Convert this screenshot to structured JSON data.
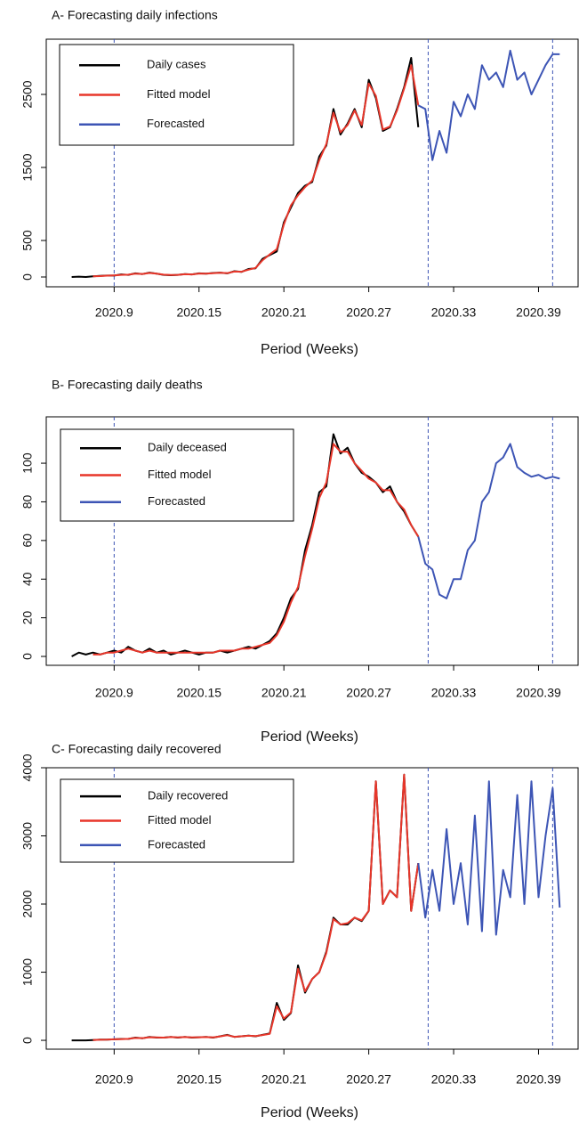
{
  "chart_data": [
    {
      "type": "line",
      "title": "A- Forecasting daily infections",
      "xlabel": "Period (Weeks)",
      "x": [
        6,
        6.5,
        7,
        7.5,
        8,
        8.5,
        9,
        9.5,
        10,
        10.5,
        11,
        11.5,
        12,
        12.5,
        13,
        13.5,
        14,
        14.5,
        15,
        15.5,
        16,
        16.5,
        17,
        17.5,
        18,
        18.5,
        19,
        19.5,
        20,
        20.5,
        21,
        21.5,
        22,
        22.5,
        23,
        23.5,
        24,
        24.5,
        25,
        25.5,
        26,
        26.5,
        27,
        27.5,
        28,
        28.5,
        29,
        29.5,
        30,
        30.5,
        31,
        31.5,
        32,
        32.5,
        33,
        33.5,
        34,
        34.5,
        35,
        35.5,
        36,
        36.5,
        37,
        37.5,
        38,
        38.5,
        39,
        39.5,
        40,
        40.5
      ],
      "series": [
        {
          "name": "Daily cases",
          "color": "#000000",
          "values": [
            0,
            5,
            0,
            10,
            15,
            20,
            20,
            35,
            30,
            50,
            40,
            60,
            45,
            30,
            25,
            30,
            40,
            35,
            50,
            45,
            55,
            60,
            50,
            80,
            70,
            110,
            120,
            250,
            300,
            350,
            750,
            950,
            1150,
            1250,
            1300,
            1650,
            1800,
            2300,
            1950,
            2100,
            2300,
            2050,
            2700,
            2450,
            2000,
            2050,
            2300,
            2600,
            3000,
            2050,
            null,
            null,
            null,
            null,
            null,
            null,
            null,
            null,
            null,
            null,
            null,
            null,
            null,
            null,
            null,
            null,
            null,
            null,
            null,
            null
          ]
        },
        {
          "name": "Fitted model",
          "color": "#e8362a",
          "values": [
            null,
            null,
            null,
            10,
            12,
            18,
            22,
            30,
            32,
            45,
            42,
            55,
            45,
            32,
            28,
            30,
            38,
            36,
            48,
            46,
            52,
            58,
            52,
            75,
            72,
            100,
            125,
            230,
            310,
            380,
            720,
            980,
            1120,
            1230,
            1320,
            1600,
            1820,
            2250,
            1980,
            2080,
            2280,
            2080,
            2650,
            2480,
            2020,
            2060,
            2280,
            2580,
            2900,
            2350,
            null,
            null,
            null,
            null,
            null,
            null,
            null,
            null,
            null,
            null,
            null,
            null,
            null,
            null,
            null,
            null,
            null,
            null,
            null,
            null
          ]
        },
        {
          "name": "Forecasted",
          "color": "#3d55b5",
          "values": [
            null,
            null,
            null,
            null,
            null,
            null,
            null,
            null,
            null,
            null,
            null,
            null,
            null,
            null,
            null,
            null,
            null,
            null,
            null,
            null,
            null,
            null,
            null,
            null,
            null,
            null,
            null,
            null,
            null,
            null,
            null,
            null,
            null,
            null,
            null,
            null,
            null,
            null,
            null,
            null,
            null,
            null,
            null,
            null,
            null,
            null,
            null,
            null,
            null,
            2350,
            2300,
            1600,
            2000,
            1700,
            2400,
            2200,
            2500,
            2300,
            2900,
            2700,
            2800,
            2600,
            3100,
            2700,
            2800,
            2500,
            2700,
            2900,
            3050,
            3050
          ]
        }
      ],
      "xlim": [
        4.2,
        41.8
      ],
      "ylim": [
        -134,
        3256
      ],
      "xticks": [
        {
          "value": 9,
          "label": "2020.9"
        },
        {
          "value": 15,
          "label": "2020.15"
        },
        {
          "value": 21,
          "label": "2020.21"
        },
        {
          "value": 27,
          "label": "2020.27"
        },
        {
          "value": 33,
          "label": "2020.33"
        },
        {
          "value": 39,
          "label": "2020.39"
        }
      ],
      "yticks": [
        0,
        500,
        1500,
        2500
      ],
      "vlines": [
        9,
        31.2,
        40
      ],
      "legend": "top-left"
    },
    {
      "type": "line",
      "title": "B- Forecasting daily deaths",
      "xlabel": "Period (Weeks)",
      "x": [
        6,
        6.5,
        7,
        7.5,
        8,
        8.5,
        9,
        9.5,
        10,
        10.5,
        11,
        11.5,
        12,
        12.5,
        13,
        13.5,
        14,
        14.5,
        15,
        15.5,
        16,
        16.5,
        17,
        17.5,
        18,
        18.5,
        19,
        19.5,
        20,
        20.5,
        21,
        21.5,
        22,
        22.5,
        23,
        23.5,
        24,
        24.5,
        25,
        25.5,
        26,
        26.5,
        27,
        27.5,
        28,
        28.5,
        29,
        29.5,
        30,
        30.5,
        31,
        31.5,
        32,
        32.5,
        33,
        33.5,
        34,
        34.5,
        35,
        35.5,
        36,
        36.5,
        37,
        37.5,
        38,
        38.5,
        39,
        39.5,
        40,
        40.5
      ],
      "series": [
        {
          "name": "Daily deceased",
          "color": "#000000",
          "values": [
            0,
            2,
            1,
            2,
            1,
            2,
            3,
            2,
            5,
            3,
            2,
            4,
            2,
            3,
            1,
            2,
            3,
            2,
            1,
            2,
            2,
            3,
            2,
            3,
            4,
            5,
            4,
            6,
            8,
            12,
            20,
            30,
            35,
            55,
            68,
            85,
            88,
            115,
            105,
            108,
            100,
            95,
            93,
            90,
            85,
            88,
            80,
            75,
            68,
            62,
            null,
            null,
            null,
            null,
            null,
            null,
            null,
            null,
            null,
            null,
            null,
            null,
            null,
            null,
            null,
            null,
            null,
            null,
            null,
            null
          ]
        },
        {
          "name": "Fitted model",
          "color": "#e8362a",
          "values": [
            null,
            null,
            null,
            1,
            1,
            2,
            2,
            3,
            4,
            3,
            2,
            3,
            2,
            2,
            2,
            2,
            2,
            2,
            2,
            2,
            2,
            3,
            3,
            3,
            4,
            4,
            5,
            6,
            7,
            11,
            18,
            28,
            36,
            52,
            66,
            82,
            90,
            110,
            106,
            106,
            100,
            96,
            92,
            90,
            86,
            86,
            80,
            76,
            68,
            62,
            null,
            null,
            null,
            null,
            null,
            null,
            null,
            null,
            null,
            null,
            null,
            null,
            null,
            null,
            null,
            null,
            null,
            null,
            null,
            null
          ]
        },
        {
          "name": "Forecasted",
          "color": "#3d55b5",
          "values": [
            null,
            null,
            null,
            null,
            null,
            null,
            null,
            null,
            null,
            null,
            null,
            null,
            null,
            null,
            null,
            null,
            null,
            null,
            null,
            null,
            null,
            null,
            null,
            null,
            null,
            null,
            null,
            null,
            null,
            null,
            null,
            null,
            null,
            null,
            null,
            null,
            null,
            null,
            null,
            null,
            null,
            null,
            null,
            null,
            null,
            null,
            null,
            null,
            null,
            62,
            48,
            45,
            32,
            30,
            40,
            40,
            55,
            60,
            80,
            85,
            100,
            103,
            110,
            98,
            95,
            93,
            94,
            92,
            93,
            92
          ]
        }
      ],
      "xlim": [
        4.2,
        41.8
      ],
      "ylim": [
        -4.6,
        124
      ],
      "xticks": [
        {
          "value": 9,
          "label": "2020.9"
        },
        {
          "value": 15,
          "label": "2020.15"
        },
        {
          "value": 21,
          "label": "2020.21"
        },
        {
          "value": 27,
          "label": "2020.27"
        },
        {
          "value": 33,
          "label": "2020.33"
        },
        {
          "value": 39,
          "label": "2020.39"
        }
      ],
      "yticks": [
        0,
        20,
        40,
        60,
        80,
        100
      ],
      "vlines": [
        9,
        31.2,
        40
      ],
      "legend": "top-left"
    },
    {
      "type": "line",
      "title": "C- Forecasting daily recovered",
      "xlabel": "Period (Weeks)",
      "x": [
        6,
        6.5,
        7,
        7.5,
        8,
        8.5,
        9,
        9.5,
        10,
        10.5,
        11,
        11.5,
        12,
        12.5,
        13,
        13.5,
        14,
        14.5,
        15,
        15.5,
        16,
        16.5,
        17,
        17.5,
        18,
        18.5,
        19,
        19.5,
        20,
        20.5,
        21,
        21.5,
        22,
        22.5,
        23,
        23.5,
        24,
        24.5,
        25,
        25.5,
        26,
        26.5,
        27,
        27.5,
        28,
        28.5,
        29,
        29.5,
        30,
        30.5,
        31,
        31.5,
        32,
        32.5,
        33,
        33.5,
        34,
        34.5,
        35,
        35.5,
        36,
        36.5,
        37,
        37.5,
        38,
        38.5,
        39,
        39.5,
        40,
        40.5
      ],
      "series": [
        {
          "name": "Daily recovered",
          "color": "#000000",
          "values": [
            0,
            0,
            0,
            5,
            10,
            10,
            15,
            20,
            20,
            40,
            30,
            50,
            40,
            40,
            50,
            40,
            50,
            40,
            45,
            50,
            40,
            60,
            80,
            50,
            60,
            70,
            60,
            80,
            100,
            550,
            300,
            400,
            1100,
            700,
            900,
            1000,
            1300,
            1800,
            1700,
            1700,
            1800,
            1750,
            1900,
            3800,
            2000,
            2200,
            2100,
            3900,
            1900,
            2600,
            null,
            null,
            null,
            null,
            null,
            null,
            null,
            null,
            null,
            null,
            null,
            null,
            null,
            null,
            null,
            null,
            null,
            null,
            null,
            null
          ]
        },
        {
          "name": "Fitted model",
          "color": "#e8362a",
          "values": [
            null,
            null,
            null,
            5,
            8,
            10,
            15,
            18,
            22,
            35,
            32,
            45,
            42,
            40,
            48,
            42,
            48,
            42,
            45,
            48,
            42,
            58,
            75,
            52,
            60,
            68,
            62,
            78,
            95,
            500,
            320,
            410,
            1050,
            720,
            900,
            1000,
            1280,
            1780,
            1700,
            1720,
            1800,
            1760,
            1900,
            3800,
            2000,
            2200,
            2100,
            3900,
            1900,
            2600,
            null,
            null,
            null,
            null,
            null,
            null,
            null,
            null,
            null,
            null,
            null,
            null,
            null,
            null,
            null,
            null,
            null,
            null,
            null,
            null
          ]
        },
        {
          "name": "Forecasted",
          "color": "#3d55b5",
          "values": [
            null,
            null,
            null,
            null,
            null,
            null,
            null,
            null,
            null,
            null,
            null,
            null,
            null,
            null,
            null,
            null,
            null,
            null,
            null,
            null,
            null,
            null,
            null,
            null,
            null,
            null,
            null,
            null,
            null,
            null,
            null,
            null,
            null,
            null,
            null,
            null,
            null,
            null,
            null,
            null,
            null,
            null,
            null,
            null,
            null,
            null,
            null,
            null,
            null,
            2600,
            1800,
            2500,
            1900,
            3100,
            2000,
            2600,
            1700,
            3300,
            1600,
            3800,
            1550,
            2500,
            2100,
            3600,
            2000,
            3800,
            2100,
            3000,
            3700,
            1950
          ]
        }
      ],
      "xlim": [
        4.2,
        41.8
      ],
      "ylim": [
        -130,
        4000
      ],
      "xticks": [
        {
          "value": 9,
          "label": "2020.9"
        },
        {
          "value": 15,
          "label": "2020.15"
        },
        {
          "value": 21,
          "label": "2020.21"
        },
        {
          "value": 27,
          "label": "2020.27"
        },
        {
          "value": 33,
          "label": "2020.33"
        },
        {
          "value": 39,
          "label": "2020.39"
        }
      ],
      "yticks": [
        0,
        1000,
        2000,
        3000,
        4000
      ],
      "vlines": [
        9,
        31.2,
        40
      ],
      "legend": "top-left"
    }
  ]
}
